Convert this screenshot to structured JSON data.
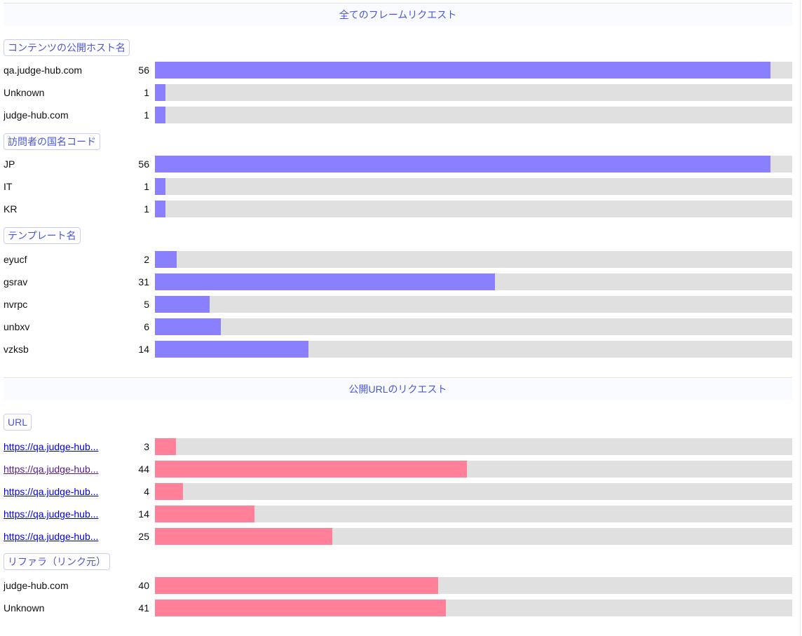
{
  "colors": {
    "accent": "#4a56d6",
    "bar_blue": "#8a80ff",
    "bar_pink": "#ff8098",
    "track": "#e0e0e0"
  },
  "frame_section": {
    "title": "全てのフレームリクエスト",
    "groups": [
      {
        "label": "コンテンツの公開ホスト名",
        "rows": [
          {
            "label": "qa.judge-hub.com",
            "count": "56",
            "fraction": 0.966
          },
          {
            "label": "Unknown",
            "count": "1",
            "fraction": 0.017
          },
          {
            "label": "judge-hub.com",
            "count": "1",
            "fraction": 0.017
          }
        ]
      },
      {
        "label": "訪問者の国名コード",
        "rows": [
          {
            "label": "JP",
            "count": "56",
            "fraction": 0.966
          },
          {
            "label": "IT",
            "count": "1",
            "fraction": 0.017
          },
          {
            "label": "KR",
            "count": "1",
            "fraction": 0.017
          }
        ]
      },
      {
        "label": "テンプレート名",
        "rows": [
          {
            "label": "eyucf",
            "count": "2",
            "fraction": 0.034
          },
          {
            "label": "gsrav",
            "count": "31",
            "fraction": 0.534
          },
          {
            "label": "nvrpc",
            "count": "5",
            "fraction": 0.086
          },
          {
            "label": "unbxv",
            "count": "6",
            "fraction": 0.103
          },
          {
            "label": "vzksb",
            "count": "14",
            "fraction": 0.241
          }
        ]
      }
    ]
  },
  "url_section": {
    "title": "公開URLのリクエスト",
    "groups": [
      {
        "label": "URL",
        "rows": [
          {
            "label": "https://qa.judge-hub...",
            "count": "3",
            "fraction": 0.033,
            "link": true
          },
          {
            "label": "https://qa.judge-hub...",
            "count": "44",
            "fraction": 0.489,
            "link": true,
            "visited": true
          },
          {
            "label": "https://qa.judge-hub...",
            "count": "4",
            "fraction": 0.044,
            "link": true
          },
          {
            "label": "https://qa.judge-hub...",
            "count": "14",
            "fraction": 0.156,
            "link": true
          },
          {
            "label": "https://qa.judge-hub...",
            "count": "25",
            "fraction": 0.278,
            "link": true
          }
        ]
      },
      {
        "label": "リファラ（リンク元）",
        "rows": [
          {
            "label": "judge-hub.com",
            "count": "40",
            "fraction": 0.444
          },
          {
            "label": "Unknown",
            "count": "41",
            "fraction": 0.456
          }
        ]
      }
    ]
  }
}
